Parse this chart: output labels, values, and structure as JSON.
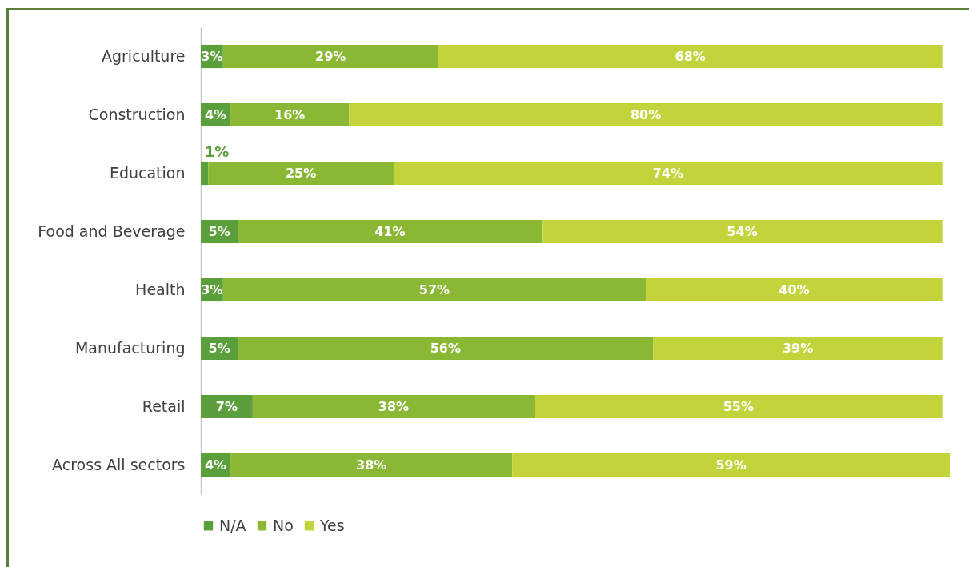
{
  "chart_data": {
    "type": "bar",
    "orientation": "horizontal",
    "stacked": true,
    "legend": "bottom",
    "categories": [
      "Agriculture",
      "Construction",
      "Education",
      "Food and Beverage",
      "Health",
      "Manufacturing",
      "Retail",
      "Across All sectors"
    ],
    "series": [
      {
        "name": "N/A",
        "color": "#5b9e3c",
        "values": [
          3,
          4,
          1,
          5,
          3,
          5,
          7,
          4
        ],
        "value_labels": [
          "3%",
          "4%",
          "1%",
          "5%",
          "3%",
          "5%",
          "7%",
          "4%"
        ]
      },
      {
        "name": "No",
        "color": "#8ab834",
        "values": [
          29,
          16,
          25,
          41,
          57,
          56,
          38,
          38
        ],
        "value_labels": [
          "29%",
          "16%",
          "25%",
          "41%",
          "57%",
          "56%",
          "38%",
          "38%"
        ]
      },
      {
        "name": "Yes",
        "color": "#c3d33c",
        "values": [
          68,
          80,
          74,
          54,
          40,
          39,
          55,
          59
        ],
        "value_labels": [
          "68%",
          "80%",
          "74%",
          "54%",
          "40%",
          "39%",
          "55%",
          "59%"
        ]
      }
    ]
  }
}
